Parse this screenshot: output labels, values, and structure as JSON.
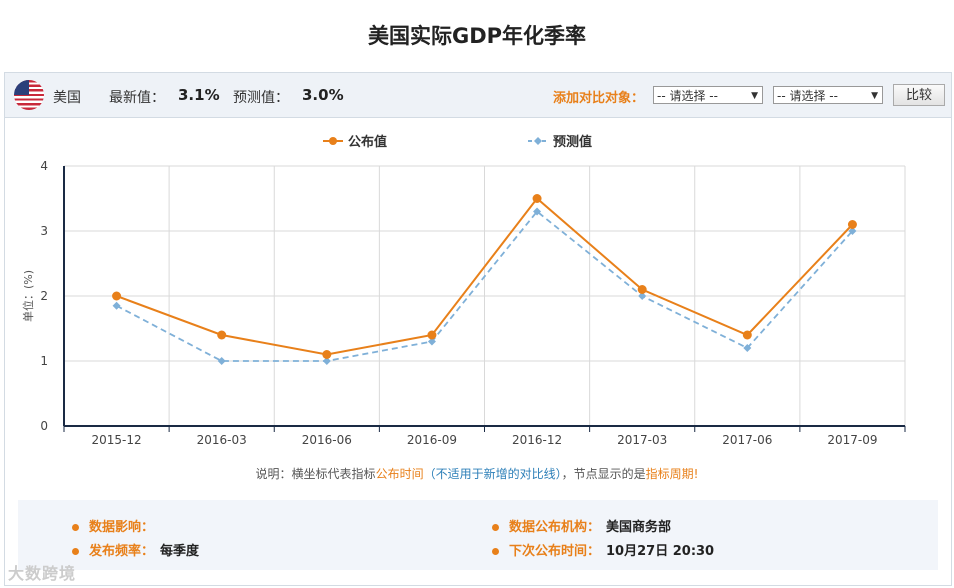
{
  "page_title": "美国实际GDP年化季率",
  "header": {
    "country": "美国",
    "latest_label": "最新值：",
    "latest_value": "3.1%",
    "forecast_label": "预测值：",
    "forecast_value": "3.0%",
    "compare_label": "添加对比对象：",
    "select1": "-- 请选择 --",
    "select2": "-- 请选择 --",
    "compare_button": "比较"
  },
  "chart_data": {
    "type": "line",
    "title": "",
    "ylabel": "单位：(%)",
    "xlabel": "",
    "categories": [
      "2015-12",
      "2016-03",
      "2016-06",
      "2016-09",
      "2016-12",
      "2017-03",
      "2017-06",
      "2017-09"
    ],
    "ylim": [
      0,
      4
    ],
    "yticks": [
      "0",
      "1",
      "2",
      "3",
      "4"
    ],
    "grid": true,
    "legend_position": "top-center",
    "series": [
      {
        "name": "公布值",
        "color": "#e8801a",
        "style": "solid",
        "values": [
          2.0,
          1.4,
          1.1,
          1.4,
          3.5,
          2.1,
          1.4,
          3.1
        ]
      },
      {
        "name": "预测值",
        "color": "#7fb0d8",
        "style": "dashed",
        "values": [
          1.85,
          1.0,
          1.0,
          1.3,
          3.3,
          2.0,
          1.2,
          3.0
        ]
      }
    ]
  },
  "note": {
    "prefix": "说明：横坐标代表指标",
    "highlight1": "公布时间",
    "paren": "（不适用于新增的对比线）",
    "middle": "，节点显示的是",
    "highlight2": "指标周期",
    "suffix": "!"
  },
  "info": {
    "impact_label": "数据影响：",
    "impact_value": "",
    "freq_label": "发布频率：",
    "freq_value": "每季度",
    "org_label": "数据公布机构：",
    "org_value": "美国商务部",
    "next_label": "下次公布时间：",
    "next_value": "10月27日 20:30"
  },
  "watermark": "大数跨境",
  "colors": {
    "orange": "#e8801a",
    "blue": "#7fb0d8",
    "axis": "#1a2a44",
    "grid": "#d9d9d9"
  }
}
